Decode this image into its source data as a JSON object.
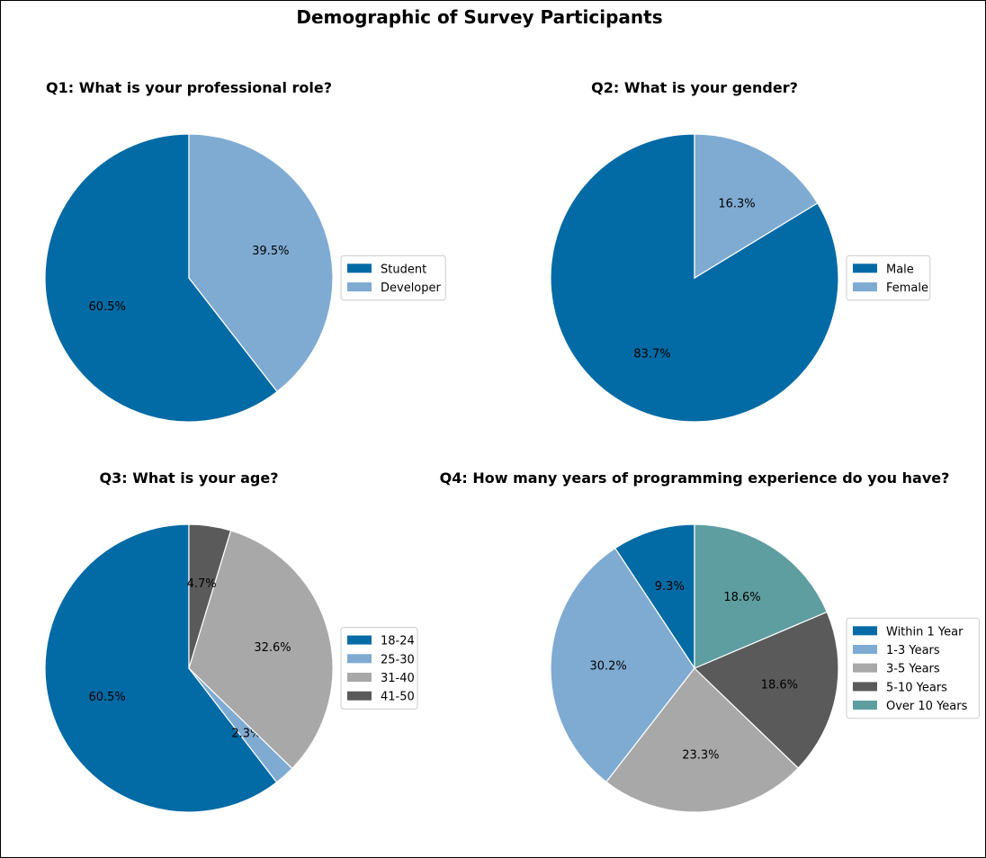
{
  "figure": {
    "title": "Demographic of Survey Participants"
  },
  "chart_data": [
    {
      "type": "pie",
      "title": "Q1: What is your professional role?",
      "categories": [
        "Student",
        "Developer"
      ],
      "values": [
        60.5,
        39.5
      ],
      "labels": [
        "60.5%",
        "39.5%"
      ],
      "colors": [
        "#026aa4",
        "#7fabd3"
      ],
      "start_angle_deg": 90,
      "direction": "counterclockwise",
      "legend": "right"
    },
    {
      "type": "pie",
      "title": "Q2: What is your gender?",
      "categories": [
        "Male",
        "Female"
      ],
      "values": [
        83.7,
        16.3
      ],
      "labels": [
        "83.7%",
        "16.3%"
      ],
      "colors": [
        "#026aa4",
        "#7fabd3"
      ],
      "start_angle_deg": 90,
      "direction": "counterclockwise",
      "legend": "right"
    },
    {
      "type": "pie",
      "title": "Q3: What is your age?",
      "categories": [
        "18-24",
        "25-30",
        "31-40",
        "41-50"
      ],
      "values": [
        60.5,
        2.3,
        32.6,
        4.7
      ],
      "labels": [
        "60.5%",
        "2.3%",
        "32.6%",
        "4.7%"
      ],
      "colors": [
        "#026aa4",
        "#7fabd3",
        "#a8a8a8",
        "#5a5a5a"
      ],
      "start_angle_deg": 90,
      "direction": "counterclockwise",
      "legend": "right"
    },
    {
      "type": "pie",
      "title": "Q4: How many years of programming experience do you have?",
      "categories": [
        "Within 1 Year",
        "1-3 Years",
        "3-5 Years",
        "5-10 Years",
        "Over 10 Years"
      ],
      "values": [
        9.3,
        30.2,
        23.3,
        18.6,
        18.6
      ],
      "labels": [
        "9.3%",
        "30.2%",
        "23.3%",
        "18.6%",
        "18.6%"
      ],
      "colors": [
        "#026aa4",
        "#7fabd3",
        "#a8a8a8",
        "#5a5a5a",
        "#5f9ea0"
      ],
      "start_angle_deg": 90,
      "direction": "counterclockwise",
      "legend": "right"
    }
  ]
}
